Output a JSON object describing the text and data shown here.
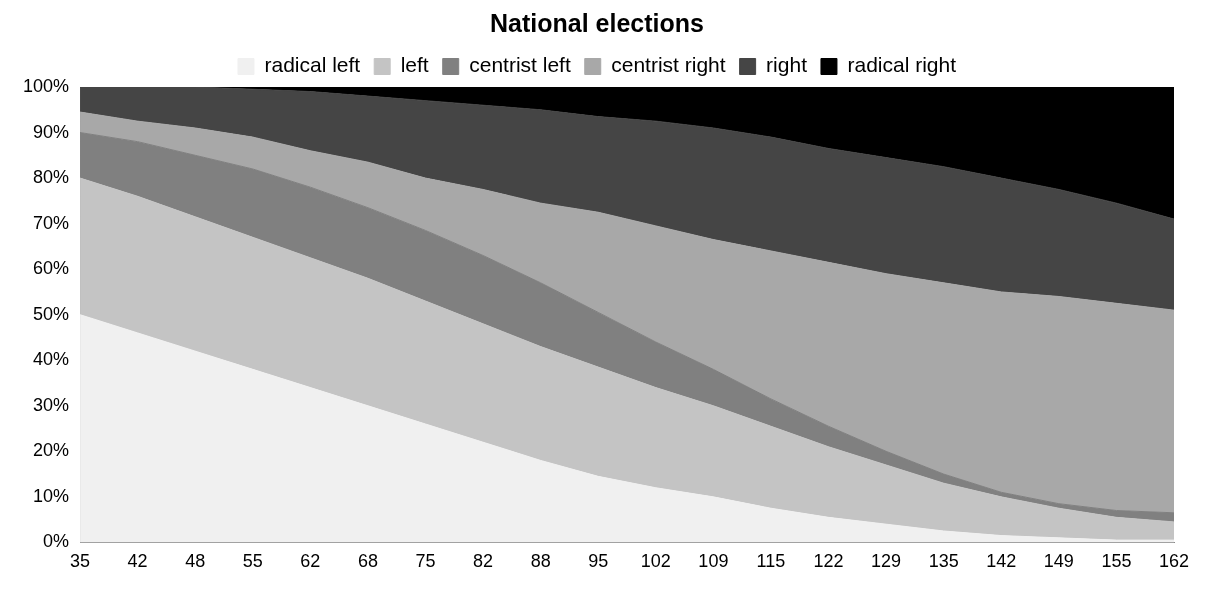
{
  "chart_data": {
    "type": "area",
    "title": "National elections",
    "stacked": true,
    "legend": "top",
    "categories": [
      "35",
      "42",
      "48",
      "55",
      "62",
      "68",
      "75",
      "82",
      "88",
      "95",
      "102",
      "109",
      "115",
      "122",
      "129",
      "135",
      "142",
      "149",
      "155",
      "162"
    ],
    "ylim": [
      0,
      100
    ],
    "yticks": [
      {
        "value": 0,
        "label": "0%"
      },
      {
        "value": 10,
        "label": "10%"
      },
      {
        "value": 20,
        "label": "20%"
      },
      {
        "value": 30,
        "label": "30%"
      },
      {
        "value": 40,
        "label": "40%"
      },
      {
        "value": 50,
        "label": "50%"
      },
      {
        "value": 60,
        "label": "60%"
      },
      {
        "value": 70,
        "label": "70%"
      },
      {
        "value": 80,
        "label": "80%"
      },
      {
        "value": 90,
        "label": "90%"
      },
      {
        "value": 100,
        "label": "100%"
      }
    ],
    "series": [
      {
        "name": "radical left",
        "color": "#f0f0f0",
        "values": [
          50,
          46,
          42,
          38,
          34,
          30,
          26,
          22,
          18,
          14.5,
          12,
          10,
          7.5,
          5.5,
          4,
          2.5,
          1.5,
          1,
          0.5,
          0.5
        ]
      },
      {
        "name": "left",
        "color": "#c4c4c4",
        "values": [
          30,
          30,
          29.5,
          29,
          28.5,
          28,
          27,
          26,
          25,
          24,
          22,
          20,
          18,
          15.5,
          13,
          10.5,
          8.5,
          6.5,
          5,
          4
        ]
      },
      {
        "name": "centrist left",
        "color": "#808080",
        "values": [
          10,
          12,
          13.5,
          15,
          15.5,
          15.5,
          15.5,
          15,
          14,
          12,
          10,
          8,
          6,
          4.5,
          3,
          2,
          1,
          1,
          1.5,
          2
        ]
      },
      {
        "name": "centrist right",
        "color": "#a8a8a8",
        "values": [
          4.5,
          4.5,
          6,
          7,
          8,
          10,
          11.5,
          14.5,
          17.5,
          22,
          25.5,
          28.5,
          32.5,
          36,
          39,
          42,
          44,
          45.5,
          45.5,
          44.5
        ]
      },
      {
        "name": "right",
        "color": "#454545",
        "values": [
          5.5,
          7.5,
          9,
          10.5,
          13,
          14.5,
          17,
          18.5,
          20.5,
          21,
          23,
          24.5,
          25,
          25,
          25.5,
          25.5,
          25,
          23.5,
          22,
          20
        ]
      },
      {
        "name": "radical right",
        "color": "#000000",
        "values": [
          0,
          0,
          0,
          0.5,
          1,
          2,
          3,
          4,
          5,
          6.5,
          7.5,
          9,
          11,
          13.5,
          15.5,
          17.5,
          20,
          22.5,
          25.5,
          29
        ]
      }
    ]
  }
}
